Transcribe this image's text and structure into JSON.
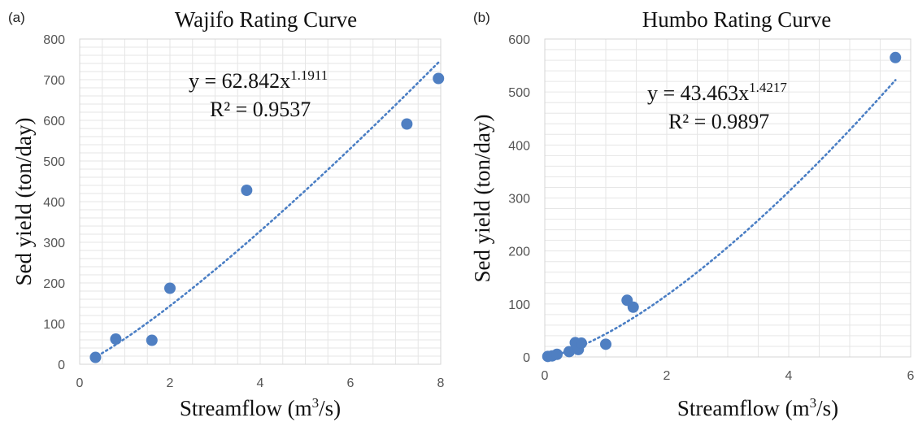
{
  "chart_data": [
    {
      "panel": "(a)",
      "type": "scatter",
      "title": "Wajifo Rating Curve",
      "xlabel": "Streamflow (m³/s)",
      "ylabel": "Sed yield (ton/day)",
      "xlim": [
        0,
        8
      ],
      "ylim": [
        0,
        800
      ],
      "xticks": [
        0,
        2,
        4,
        6,
        8
      ],
      "yticks": [
        0,
        100,
        200,
        300,
        400,
        500,
        600,
        700,
        800
      ],
      "grid": true,
      "series": [
        {
          "x": [
            0.35,
            0.8,
            1.6,
            2.0,
            3.7,
            7.25,
            7.95
          ],
          "y": [
            17,
            62,
            59,
            187,
            428,
            591,
            703
          ],
          "color": "#4f7fc2"
        }
      ],
      "trendline": {
        "type": "power",
        "a": 62.842,
        "b": 1.1911,
        "x_range": [
          0.3,
          7.95
        ],
        "equation_main": "y = 62.842x",
        "equation_exp": "1.1911",
        "r2": "R² = 0.9537",
        "color": "#4a7ec4"
      }
    },
    {
      "panel": "(b)",
      "type": "scatter",
      "title": "Humbo Rating Curve",
      "xlabel": "Streamflow (m³/s)",
      "ylabel": "Sed yield (ton/day)",
      "xlim": [
        0,
        6
      ],
      "ylim": [
        0,
        600
      ],
      "xticks": [
        0,
        2,
        4,
        6
      ],
      "yticks": [
        0,
        100,
        200,
        300,
        400,
        500,
        600
      ],
      "grid": true,
      "series": [
        {
          "x": [
            0.05,
            0.12,
            0.2,
            0.4,
            0.5,
            0.55,
            0.6,
            1.0,
            1.35,
            1.45,
            5.75
          ],
          "y": [
            1,
            2,
            5,
            10,
            27,
            14,
            26,
            24,
            107,
            94,
            565
          ],
          "color": "#4f7fc2"
        }
      ],
      "trendline": {
        "type": "power",
        "a": 43.463,
        "b": 1.4217,
        "x_range": [
          0.05,
          5.75
        ],
        "equation_main": "y = 43.463x",
        "equation_exp": "1.4217",
        "r2": "R² = 0.9897",
        "color": "#4a7ec4"
      }
    }
  ]
}
